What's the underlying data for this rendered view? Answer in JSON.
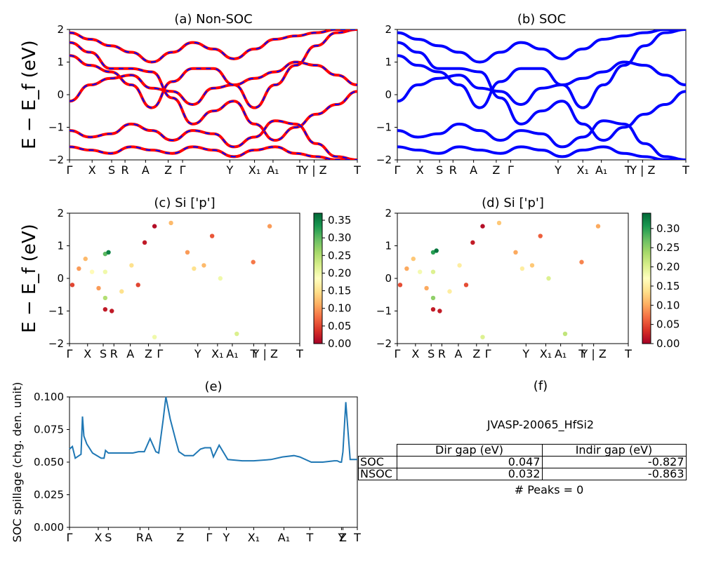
{
  "colors": {
    "nonsoc_line": "#ff0000",
    "soc_line": "#0000ff",
    "spillage_line": "#1f77b4",
    "colormap": "RdYlGn"
  },
  "panels": {
    "a": {
      "title": "(a) Non-SOC"
    },
    "b": {
      "title": "(b) SOC"
    },
    "c": {
      "title": "(c)  Si ['p']"
    },
    "d": {
      "title": "(d) Si ['p']"
    },
    "e": {
      "title": "(e)"
    },
    "f": {
      "title": "(f)"
    }
  },
  "band_ylabel": "E − E_f (eV)",
  "band_xticks": [
    "Γ",
    "X",
    "S",
    "R",
    "A",
    "Z",
    "Γ",
    "Y",
    "X₁",
    "A₁",
    "T",
    "Y | Z",
    "T"
  ],
  "table": {
    "caption": "JVASP-20065_HfSi2",
    "headers": [
      "Dir gap (eV)",
      "Indir gap (eV)"
    ],
    "rows": [
      {
        "label": "SOC",
        "dir": "0.047",
        "indir": "-0.827"
      },
      {
        "label": "NSOC",
        "dir": "0.032",
        "indir": "-0.863"
      }
    ],
    "peaks": "# Peaks = 0"
  },
  "chart_data": [
    {
      "type": "line",
      "title": "(a) Non-SOC",
      "ylabel": "E − E_f (eV)",
      "ylim": [
        -2,
        2
      ],
      "yticks": [
        "−2",
        "−1",
        "0",
        "1",
        "2"
      ],
      "xticks": [
        "Γ",
        "X",
        "S",
        "R",
        "A",
        "Z",
        "Γ",
        "Y",
        "X₁",
        "A₁",
        "T",
        "Y | Z",
        "T"
      ],
      "series": [
        {
          "values": [
            -0.2,
            0.3,
            0.5,
            0.6,
            0.2,
            0.1,
            -0.3,
            0.2,
            0.3,
            0.5,
            0.7,
            1.0,
            0.9,
            0.6,
            0.3
          ]
        },
        {
          "values": [
            1.2,
            0.9,
            0.7,
            0.3,
            -0.4,
            0.4,
            0.8,
            0.8,
            0.3,
            -0.4,
            0.3,
            0.9,
            1.5,
            1.9,
            2.0
          ]
        },
        {
          "values": [
            1.6,
            1.3,
            0.8,
            0.8,
            0.7,
            -0.1,
            -0.9,
            -0.5,
            -0.2,
            -0.9,
            -1.4,
            -1.0,
            -0.6,
            -0.3,
            0.1
          ]
        },
        {
          "values": [
            -1.1,
            -1.3,
            -1.2,
            -0.9,
            -1.1,
            -1.4,
            -1.1,
            -1.2,
            -1.6,
            -1.3,
            -0.8,
            -0.9,
            -1.5,
            -1.9,
            -2.0
          ]
        },
        {
          "values": [
            -1.6,
            -1.7,
            -1.8,
            -1.6,
            -1.7,
            -1.8,
            -1.6,
            -1.7,
            -1.9,
            -1.7,
            -1.6,
            -1.8,
            -1.9,
            -2.0,
            -2.0
          ]
        },
        {
          "values": [
            1.9,
            1.7,
            1.5,
            1.3,
            1.0,
            1.3,
            1.6,
            1.4,
            1.1,
            1.4,
            1.7,
            1.8,
            1.9,
            2.0,
            2.0
          ]
        }
      ]
    },
    {
      "type": "line",
      "title": "(b) SOC",
      "ylim": [
        -2,
        2
      ],
      "yticks": [
        "−2",
        "−1",
        "0",
        "1",
        "2"
      ],
      "xticks": [
        "Γ",
        "X",
        "S",
        "R",
        "A",
        "Z",
        "Γ",
        "Y",
        "X₁",
        "A₁",
        "T",
        "Y | Z",
        "T"
      ],
      "series": [
        {
          "values": [
            -0.2,
            0.3,
            0.5,
            0.6,
            0.2,
            0.1,
            -0.3,
            0.2,
            0.3,
            0.5,
            0.7,
            1.0,
            0.9,
            0.6,
            0.3
          ]
        },
        {
          "values": [
            1.2,
            0.9,
            0.7,
            0.3,
            -0.4,
            0.4,
            0.8,
            0.8,
            0.3,
            -0.4,
            0.3,
            0.9,
            1.5,
            1.9,
            2.0
          ]
        },
        {
          "values": [
            1.6,
            1.3,
            0.8,
            0.8,
            0.7,
            -0.1,
            -0.9,
            -0.5,
            -0.2,
            -0.9,
            -1.4,
            -1.0,
            -0.6,
            -0.3,
            0.1
          ]
        },
        {
          "values": [
            -1.1,
            -1.3,
            -1.2,
            -0.9,
            -1.1,
            -1.4,
            -1.1,
            -1.2,
            -1.6,
            -1.3,
            -0.8,
            -0.9,
            -1.5,
            -1.9,
            -2.0
          ]
        },
        {
          "values": [
            -1.6,
            -1.7,
            -1.8,
            -1.6,
            -1.7,
            -1.8,
            -1.6,
            -1.7,
            -1.9,
            -1.7,
            -1.6,
            -1.8,
            -1.9,
            -2.0,
            -2.0
          ]
        },
        {
          "values": [
            1.9,
            1.7,
            1.5,
            1.3,
            1.0,
            1.3,
            1.6,
            1.4,
            1.1,
            1.4,
            1.7,
            1.8,
            1.9,
            2.0,
            2.0
          ]
        }
      ]
    },
    {
      "type": "scatter",
      "title": "(c)  Si ['p']",
      "ylabel": "E − E_f (eV)",
      "ylim": [
        -2,
        2
      ],
      "yticks": [
        "−2",
        "−1",
        "0",
        "1",
        "2"
      ],
      "xticks": [
        "Γ",
        "X",
        "S",
        "R",
        "A",
        "Z",
        "Γ",
        "Y",
        "X₁",
        "A₁",
        "T",
        "Y | Z",
        "T"
      ],
      "colorbar": {
        "min": 0.0,
        "max": 0.37,
        "ticks": [
          "0.00",
          "0.05",
          "0.10",
          "0.15",
          "0.20",
          "0.25",
          "0.30",
          "0.35"
        ],
        "tick_values": [
          0,
          0.05,
          0.1,
          0.15,
          0.2,
          0.25,
          0.3,
          0.35
        ]
      },
      "points": [
        {
          "x": 0.0,
          "y": -0.2,
          "w": 0.05
        },
        {
          "x": 0.4,
          "y": 0.3,
          "w": 0.1
        },
        {
          "x": 0.8,
          "y": 0.6,
          "w": 0.12
        },
        {
          "x": 1.2,
          "y": 0.2,
          "w": 0.18
        },
        {
          "x": 1.6,
          "y": -0.3,
          "w": 0.1
        },
        {
          "x": 2.0,
          "y": 0.2,
          "w": 0.2
        },
        {
          "x": 2.0,
          "y": 0.75,
          "w": 0.3
        },
        {
          "x": 2.2,
          "y": 0.8,
          "w": 0.35
        },
        {
          "x": 2.0,
          "y": -0.6,
          "w": 0.25
        },
        {
          "x": 2.0,
          "y": -0.95,
          "w": 0.02
        },
        {
          "x": 2.4,
          "y": -1.0,
          "w": 0.02
        },
        {
          "x": 3.0,
          "y": -0.4,
          "w": 0.15
        },
        {
          "x": 3.6,
          "y": 0.4,
          "w": 0.15
        },
        {
          "x": 4.0,
          "y": -0.2,
          "w": 0.05
        },
        {
          "x": 4.4,
          "y": 1.1,
          "w": 0.02
        },
        {
          "x": 5.0,
          "y": 1.6,
          "w": 0.01
        },
        {
          "x": 5.0,
          "y": -1.8,
          "w": 0.2
        },
        {
          "x": 6.0,
          "y": 1.7,
          "w": 0.12
        },
        {
          "x": 7.0,
          "y": 0.8,
          "w": 0.1
        },
        {
          "x": 7.4,
          "y": 0.3,
          "w": 0.15
        },
        {
          "x": 8.0,
          "y": 0.4,
          "w": 0.12
        },
        {
          "x": 8.5,
          "y": 1.3,
          "w": 0.06
        },
        {
          "x": 9.0,
          "y": 0.0,
          "w": 0.2
        },
        {
          "x": 10.0,
          "y": -1.7,
          "w": 0.22
        },
        {
          "x": 11.0,
          "y": 0.5,
          "w": 0.08
        },
        {
          "x": 12.0,
          "y": 1.6,
          "w": 0.1
        }
      ]
    },
    {
      "type": "scatter",
      "title": "(d) Si ['p']",
      "ylim": [
        -2,
        2
      ],
      "yticks": [
        "−2",
        "−1",
        "0",
        "1",
        "2"
      ],
      "xticks": [
        "Γ",
        "X",
        "S",
        "R",
        "A",
        "Z",
        "Γ",
        "Y",
        "X₁",
        "A₁",
        "T",
        "Y | Z",
        "T"
      ],
      "colorbar": {
        "min": 0.0,
        "max": 0.34,
        "ticks": [
          "0.00",
          "0.05",
          "0.10",
          "0.15",
          "0.20",
          "0.25",
          "0.30"
        ],
        "tick_values": [
          0,
          0.05,
          0.1,
          0.15,
          0.2,
          0.25,
          0.3
        ]
      },
      "points": [
        {
          "x": 0.0,
          "y": -0.2,
          "w": 0.05
        },
        {
          "x": 0.4,
          "y": 0.3,
          "w": 0.1
        },
        {
          "x": 0.8,
          "y": 0.6,
          "w": 0.12
        },
        {
          "x": 1.2,
          "y": 0.2,
          "w": 0.18
        },
        {
          "x": 1.6,
          "y": -0.3,
          "w": 0.1
        },
        {
          "x": 2.0,
          "y": 0.2,
          "w": 0.2
        },
        {
          "x": 2.0,
          "y": 0.8,
          "w": 0.3
        },
        {
          "x": 2.2,
          "y": 0.85,
          "w": 0.33
        },
        {
          "x": 2.0,
          "y": -0.6,
          "w": 0.25
        },
        {
          "x": 2.0,
          "y": -0.95,
          "w": 0.02
        },
        {
          "x": 2.4,
          "y": -1.0,
          "w": 0.02
        },
        {
          "x": 3.0,
          "y": -0.4,
          "w": 0.15
        },
        {
          "x": 3.6,
          "y": 0.4,
          "w": 0.15
        },
        {
          "x": 4.0,
          "y": -0.2,
          "w": 0.05
        },
        {
          "x": 4.4,
          "y": 1.1,
          "w": 0.02
        },
        {
          "x": 5.0,
          "y": 1.6,
          "w": 0.01
        },
        {
          "x": 5.0,
          "y": -1.8,
          "w": 0.2
        },
        {
          "x": 6.0,
          "y": 1.7,
          "w": 0.12
        },
        {
          "x": 7.0,
          "y": 0.8,
          "w": 0.1
        },
        {
          "x": 7.4,
          "y": 0.3,
          "w": 0.15
        },
        {
          "x": 8.0,
          "y": 0.4,
          "w": 0.12
        },
        {
          "x": 8.5,
          "y": 1.3,
          "w": 0.06
        },
        {
          "x": 9.0,
          "y": 0.0,
          "w": 0.2
        },
        {
          "x": 10.0,
          "y": -1.7,
          "w": 0.22
        },
        {
          "x": 11.0,
          "y": 0.5,
          "w": 0.08
        },
        {
          "x": 12.0,
          "y": 1.6,
          "w": 0.1
        }
      ]
    },
    {
      "type": "line",
      "title": "(e)",
      "ylabel": "SOC spillage (chg. den. unit)",
      "ylim": [
        0,
        0.1
      ],
      "yticks": [
        "0.000",
        "0.025",
        "0.050",
        "0.075",
        "0.100"
      ],
      "ytick_values": [
        0,
        0.025,
        0.05,
        0.075,
        0.1
      ],
      "xticks": [
        "Γ",
        "X",
        "S",
        "R",
        "A",
        "Z",
        "Γ",
        "Y",
        "X₁",
        "A₁",
        "T",
        "Y",
        "Z",
        "T"
      ],
      "xtick_values": [
        0,
        0.1,
        0.135,
        0.245,
        0.275,
        0.385,
        0.485,
        0.545,
        0.64,
        0.745,
        0.835,
        0.945,
        0.95,
        1.0
      ],
      "x": [
        0,
        0.01,
        0.02,
        0.04,
        0.045,
        0.05,
        0.06,
        0.08,
        0.11,
        0.12,
        0.125,
        0.135,
        0.16,
        0.18,
        0.22,
        0.24,
        0.26,
        0.28,
        0.3,
        0.31,
        0.325,
        0.335,
        0.35,
        0.37,
        0.38,
        0.4,
        0.43,
        0.455,
        0.47,
        0.49,
        0.5,
        0.52,
        0.55,
        0.6,
        0.62,
        0.64,
        0.7,
        0.74,
        0.78,
        0.8,
        0.84,
        0.88,
        0.92,
        0.93,
        0.94,
        0.945,
        0.95,
        0.96,
        0.975,
        1.0
      ],
      "values": [
        0.06,
        0.062,
        0.053,
        0.056,
        0.085,
        0.07,
        0.064,
        0.057,
        0.053,
        0.053,
        0.059,
        0.057,
        0.057,
        0.057,
        0.057,
        0.058,
        0.058,
        0.068,
        0.058,
        0.057,
        0.082,
        0.1,
        0.083,
        0.066,
        0.058,
        0.055,
        0.055,
        0.06,
        0.061,
        0.061,
        0.054,
        0.063,
        0.052,
        0.051,
        0.051,
        0.051,
        0.052,
        0.054,
        0.055,
        0.054,
        0.05,
        0.05,
        0.051,
        0.051,
        0.05,
        0.05,
        0.058,
        0.096,
        0.052,
        0.052
      ]
    }
  ]
}
